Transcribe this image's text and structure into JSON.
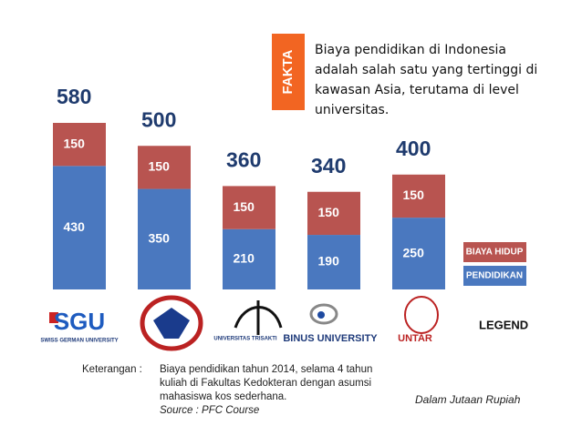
{
  "chart_data": {
    "type": "bar",
    "stacked": true,
    "categories": [
      "SGU",
      null,
      "UNIVERSITAS TRISAKTI",
      "BINUS UNIVERSITY",
      "UNTAR"
    ],
    "category_sublabels": [
      "SWISS GERMAN UNIVERSITY",
      null,
      null,
      null,
      null
    ],
    "series": [
      {
        "name": "PENDIDIKAN",
        "color": "#4a78bf",
        "values": [
          430,
          350,
          210,
          190,
          250
        ]
      },
      {
        "name": "BIAYA HIDUP",
        "color": "#b85450",
        "values": [
          150,
          150,
          150,
          150,
          150
        ]
      }
    ],
    "total_labels": [
      "580",
      "500",
      "360",
      "340",
      "400"
    ],
    "legend_title": "LEGEND",
    "fact_badge": "FAKTA",
    "fact_lines": [
      "Biaya pendidikan di Indonesia",
      "adalah salah satu yang tertinggi di",
      "kawasan Asia, terutama di level",
      "universitas."
    ],
    "note_label": "Keterangan :",
    "note_lines": [
      "Biaya pendidikan tahun 2014, selama 4 tahun",
      "kuliah di Fakultas Kedokteran dengan asumsi",
      "mahasiswa kos sederhana."
    ],
    "source": "Source : PFC Course",
    "unit": "Dalam Jutaan Rupiah"
  }
}
